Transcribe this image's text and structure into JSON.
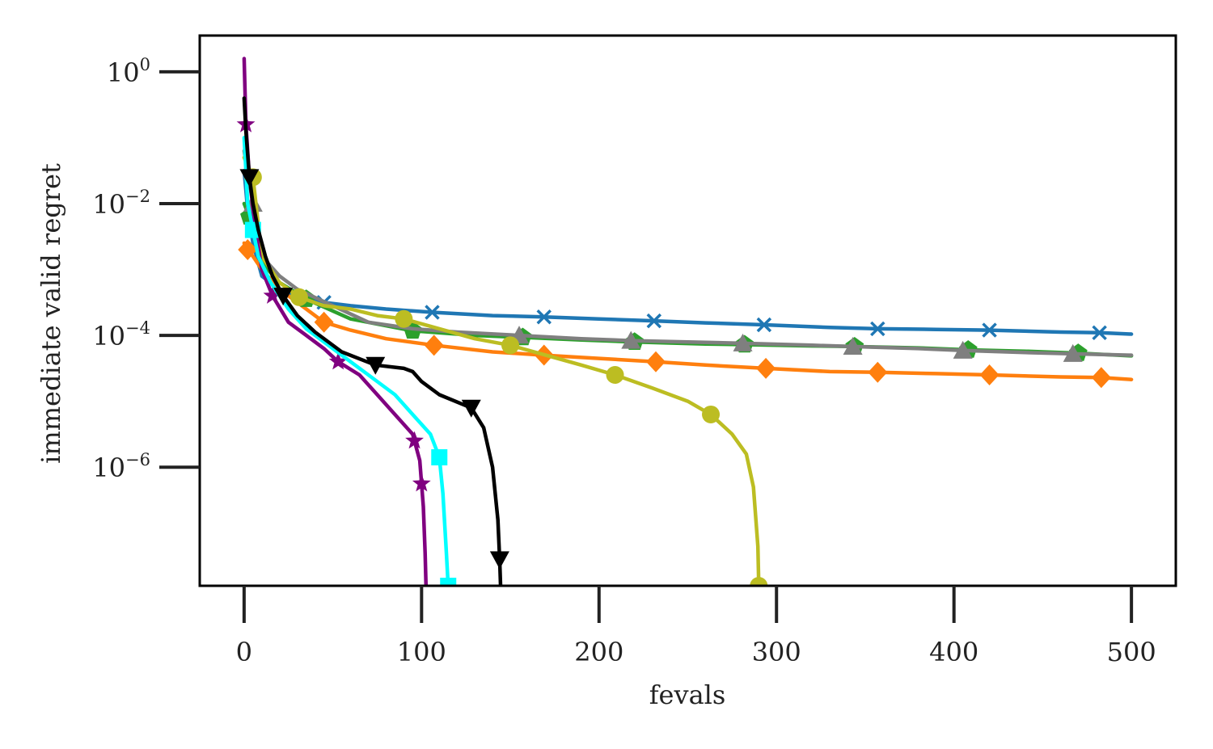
{
  "chart_data": {
    "type": "line",
    "xlabel": "fevals",
    "ylabel": "immediate valid regret",
    "xlim": [
      -25,
      525
    ],
    "ylim_log10": [
      -7.8,
      0.55
    ],
    "y_scale": "log",
    "grid": false,
    "x_ticks": [
      {
        "value": 0,
        "label": "0"
      },
      {
        "value": 100,
        "label": "100"
      },
      {
        "value": 200,
        "label": "200"
      },
      {
        "value": 300,
        "label": "300"
      },
      {
        "value": 400,
        "label": "400"
      },
      {
        "value": 500,
        "label": "500"
      }
    ],
    "y_ticks": [
      {
        "log10": 0,
        "base": "10",
        "exp": "0"
      },
      {
        "log10": -2,
        "base": "10",
        "exp": "−2"
      },
      {
        "log10": -4,
        "base": "10",
        "exp": "−4"
      },
      {
        "log10": -6,
        "base": "10",
        "exp": "−6"
      }
    ],
    "series": [
      {
        "color": "#1f77b4",
        "marker": "x",
        "x": [
          0,
          2,
          5,
          10,
          20,
          30,
          45,
          60,
          80,
          106,
          140,
          169,
          200,
          231,
          260,
          293,
          330,
          357,
          390,
          420,
          460,
          482,
          500
        ],
        "log10y": [
          -1.5,
          -2.1,
          -2.6,
          -3.1,
          -3.3,
          -3.4,
          -3.5,
          -3.55,
          -3.6,
          -3.65,
          -3.7,
          -3.72,
          -3.75,
          -3.78,
          -3.81,
          -3.84,
          -3.88,
          -3.9,
          -3.91,
          -3.92,
          -3.95,
          -3.96,
          -3.98
        ],
        "markers_x": [
          45,
          106,
          169,
          231,
          293,
          357,
          420,
          482
        ]
      },
      {
        "color": "#ff7f0e",
        "marker": "diamond",
        "x": [
          0,
          2,
          5,
          10,
          20,
          30,
          45,
          60,
          80,
          107,
          140,
          169,
          200,
          232,
          260,
          294,
          330,
          357,
          390,
          420,
          460,
          483,
          500
        ],
        "log10y": [
          -2.6,
          -2.7,
          -2.8,
          -3.0,
          -3.3,
          -3.5,
          -3.8,
          -3.92,
          -4.05,
          -4.15,
          -4.25,
          -4.3,
          -4.35,
          -4.4,
          -4.45,
          -4.5,
          -4.55,
          -4.56,
          -4.58,
          -4.6,
          -4.63,
          -4.64,
          -4.67
        ],
        "markers_x": [
          2,
          45,
          107,
          169,
          232,
          294,
          357,
          420,
          483
        ]
      },
      {
        "color": "#2ca02c",
        "marker": "pentagon",
        "x": [
          0,
          3,
          10,
          20,
          35,
          60,
          95,
          130,
          157,
          190,
          220,
          260,
          282,
          320,
          344,
          380,
          408,
          440,
          470,
          500
        ],
        "log10y": [
          -2.0,
          -2.2,
          -2.9,
          -3.2,
          -3.45,
          -3.75,
          -3.93,
          -4.0,
          -4.03,
          -4.07,
          -4.1,
          -4.13,
          -4.14,
          -4.16,
          -4.17,
          -4.19,
          -4.22,
          -4.24,
          -4.27,
          -4.31
        ],
        "markers_x": [
          3,
          35,
          95,
          157,
          220,
          282,
          344,
          408,
          470
        ]
      },
      {
        "color": "#7f7f7f",
        "marker": "triangle-up",
        "x": [
          0,
          5,
          10,
          20,
          30,
          50,
          70,
          95,
          120,
          155,
          190,
          218,
          250,
          281,
          320,
          343,
          380,
          405,
          440,
          467,
          500
        ],
        "log10y": [
          -1.2,
          -2.0,
          -2.8,
          -3.1,
          -3.3,
          -3.55,
          -3.8,
          -3.9,
          -3.95,
          -4.0,
          -4.05,
          -4.08,
          -4.1,
          -4.12,
          -4.15,
          -4.17,
          -4.2,
          -4.23,
          -4.26,
          -4.28,
          -4.3
        ],
        "markers_x": [
          5,
          155,
          218,
          281,
          343,
          405,
          467
        ]
      },
      {
        "color": "#bcbd22",
        "marker": "circle",
        "x": [
          0,
          5,
          10,
          20,
          31,
          45,
          60,
          75,
          90,
          110,
          130,
          150,
          170,
          190,
          209,
          230,
          250,
          263,
          275,
          283,
          287,
          289.5,
          290
        ],
        "log10y": [
          -1.3,
          -1.6,
          -2.8,
          -3.2,
          -3.42,
          -3.55,
          -3.6,
          -3.7,
          -3.75,
          -3.9,
          -4.05,
          -4.15,
          -4.3,
          -4.45,
          -4.6,
          -4.8,
          -5.0,
          -5.2,
          -5.5,
          -5.8,
          -6.3,
          -7.2,
          -7.8
        ],
        "markers_x": [
          5,
          31,
          90,
          150,
          209,
          263,
          290
        ]
      },
      {
        "color": "#800080",
        "marker": "star",
        "x": [
          0,
          1,
          3,
          6,
          10,
          16,
          25,
          35,
          45,
          53,
          65,
          75,
          85,
          95,
          99,
          101,
          102,
          102.5
        ],
        "log10y": [
          0.2,
          -0.8,
          -1.6,
          -2.3,
          -3.0,
          -3.4,
          -3.8,
          -4.0,
          -4.2,
          -4.4,
          -4.6,
          -4.9,
          -5.2,
          -5.5,
          -5.9,
          -6.6,
          -7.3,
          -7.8
        ],
        "markers_x": [
          1,
          16,
          53,
          96,
          100
        ]
      },
      {
        "color": "#00ffff",
        "marker": "square",
        "x": [
          0,
          2,
          5,
          8,
          15,
          25,
          35,
          50,
          60,
          70,
          85,
          95,
          105,
          110,
          112,
          114,
          115
        ],
        "log10y": [
          -1.0,
          -2.0,
          -2.4,
          -2.8,
          -3.2,
          -3.6,
          -3.9,
          -4.2,
          -4.4,
          -4.6,
          -4.9,
          -5.2,
          -5.5,
          -5.85,
          -6.4,
          -7.3,
          -7.8
        ],
        "markers_x": [
          5,
          110,
          115
        ]
      },
      {
        "color": "#000000",
        "marker": "triangle-down",
        "x": [
          0,
          1,
          3,
          5,
          8,
          12,
          16,
          22,
          30,
          40,
          55,
          74,
          90,
          95,
          100,
          110,
          128,
          135,
          140,
          143,
          144,
          144.5
        ],
        "log10y": [
          -0.4,
          -0.9,
          -1.6,
          -2.0,
          -2.4,
          -2.8,
          -3.1,
          -3.4,
          -3.7,
          -3.95,
          -4.25,
          -4.45,
          -4.5,
          -4.55,
          -4.7,
          -4.9,
          -5.1,
          -5.4,
          -6.0,
          -6.8,
          -7.4,
          -7.8
        ],
        "markers_x": [
          3,
          22,
          74,
          128,
          144
        ]
      }
    ]
  }
}
